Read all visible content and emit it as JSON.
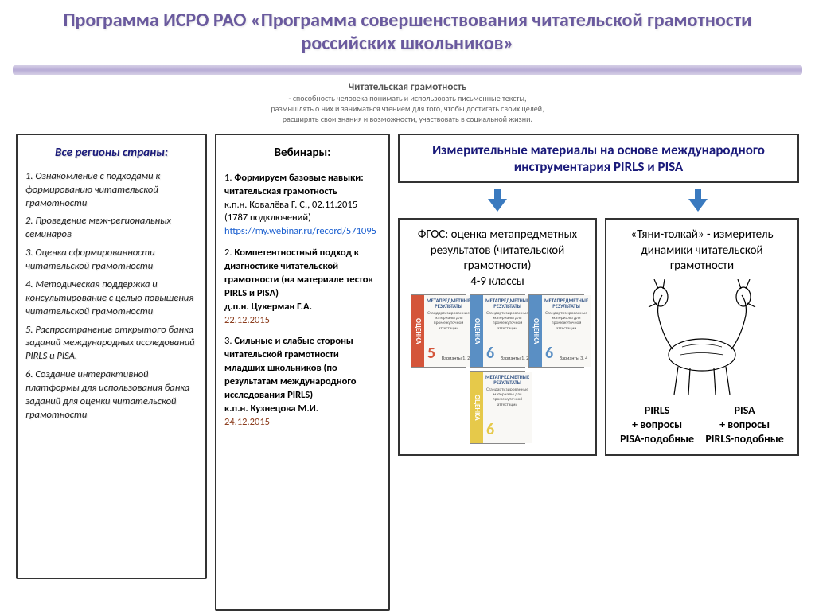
{
  "title": "Программа ИСРО РАО «Программа совершенствования читательской грамотности российских школьников»",
  "subheader": {
    "line1": "Читательская грамотность",
    "line2": "-  способность человека понимать и использовать письменные тексты,",
    "line3": "размышлять о них и заниматься чтением для того, чтобы достигать своих целей,",
    "line4": "расширять свои знания и возможности, участвовать в социальной жизни."
  },
  "col1": {
    "title": "Все регионы страны:",
    "items": [
      "1. Ознакомление с подходами к формированию читательской грамотности",
      "2. Проведение меж-региональных  семинаров",
      "3. Оценка сформированности читательской грамотности",
      "4. Методическая поддержка и консультирование с целью повышения читательской грамотности",
      "5. Распространение открытого банка заданий международных исследований PIRLS и PISA.",
      "6. Создание интерактивной платформы для использования банка заданий для оценки читательской грамотности"
    ]
  },
  "col2": {
    "title": "Вебинары:",
    "w1_num": "1. ",
    "w1_bold": "Формируем базовые навыки: читательская грамотность",
    "w1_author": "к.п.н. Ковалёва Г. С., 02.11.2015 (1787 подключений)",
    "w1_link": "https://my.webinar.ru/record/571095",
    "w2_num": "2. ",
    "w2_bold": "Компетентностный подход к диагностике читательской грамотности (на материале тестов PIRLS и PISA)",
    "w2_author": "д.п.н. Цукерман Г.А.",
    "w2_date": "22.12.2015",
    "w3_num": "3.  ",
    "w3_bold": "Сильные и слабые стороны читательской грамотности младших школьников (по результатам международного исследования PIRLS)",
    "w3_author": "к.п.н. Кузнецова М.И.",
    "w3_date": "24.12.2015"
  },
  "col3": {
    "header": "Измерительные материалы на основе международного инструментария PIRLS и PISA",
    "left": "ФГОС: оценка метапредметных результатов (читательской грамотности)\n4-9 классы",
    "right": "«Тяни-толкай» - измеритель динамики читательской грамотности",
    "books": [
      {
        "spine_color": "#d4553a",
        "title": "МЕТАПРЕДМЕТНЫЕ РЕЗУЛЬТАТЫ",
        "sub": "Стандартизированные материалы для промежуточной аттестации",
        "num": "5",
        "num_color": "#d4553a",
        "var": "Варианты 1, 2"
      },
      {
        "spine_color": "#5a8fc4",
        "title": "МЕТАПРЕДМЕТНЫЕ РЕЗУЛЬТАТЫ",
        "sub": "Стандартизированные материалы для промежуточной аттестации",
        "num": "6",
        "num_color": "#5a8fc4",
        "var": "Варианты 1, 2"
      },
      {
        "spine_color": "#5a8fc4",
        "title": "МЕТАПРЕДМЕТНЫЕ РЕЗУЛЬТАТЫ",
        "sub": "Стандартизированные материалы для промежуточной аттестации",
        "num": "6",
        "num_color": "#5a8fc4",
        "var": "Варианты 3, 4"
      },
      {
        "spine_color": "#e6c94a",
        "title": "МЕТАПРЕДМЕТНЫЕ РЕЗУЛЬТАТЫ",
        "sub": "Стандартизированные материалы для промежуточной аттестации",
        "num": "6",
        "num_color": "#e6c94a",
        "var": ""
      }
    ],
    "labels": {
      "l1": "PIRLS",
      "l2": "PISA",
      "l3": "+ вопросы",
      "l4": "+ вопросы",
      "l5": "PISA-подобные",
      "l6": "PIRLS-подобные"
    }
  },
  "spine_text": "ОЦЕНКА"
}
